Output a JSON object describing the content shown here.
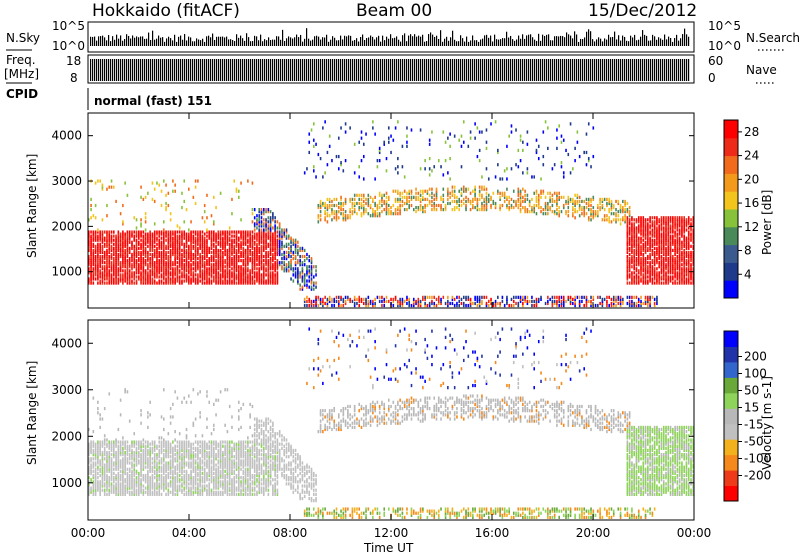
{
  "header": {
    "title": "Hokkaido (fitACF)",
    "beam": "Beam 00",
    "date": "15/Dec/2012"
  },
  "top_panels": {
    "nsky_label": "N.Sky",
    "nsky_ticks": [
      "10^5",
      "10^0"
    ],
    "nsearch_label": "N.Search",
    "nsearch_ticks": [
      "10^5",
      "10^0"
    ],
    "freq_label_1": "Freq.",
    "freq_label_2": "[MHz]",
    "freq_ticks": [
      "18",
      "8"
    ],
    "nave_label": "Nave",
    "nave_ticks": [
      "60",
      "0"
    ],
    "cpid_label": "CPID",
    "cpid_text": "normal (fast) 151"
  },
  "colors": {
    "power_scale": [
      "#0000ff",
      "#1e3a8a",
      "#3b5b8f",
      "#4a8a5a",
      "#88c23a",
      "#f2c41c",
      "#f39a1c",
      "#f26b1c",
      "#ee2a18",
      "#ff0000"
    ],
    "velocity_scale": [
      "#ff0000",
      "#ee3a18",
      "#f5891b",
      "#f2b11d",
      "#c0c0c0",
      "#b8b8b8",
      "#8ed35a",
      "#6aa83a",
      "#3366cc",
      "#2233aa",
      "#0000ff"
    ],
    "grey": "#c0c0c0"
  },
  "chart_data": [
    {
      "type": "heatmap",
      "name": "power",
      "ylabel": "Slant Range [km]",
      "xlabel": "",
      "xticks": [
        "00:00",
        "04:00",
        "08:00",
        "12:00",
        "16:00",
        "20:00",
        "00:00"
      ],
      "yticks": [
        "1000",
        "2000",
        "3000",
        "4000"
      ],
      "ylim": [
        200,
        4500
      ],
      "xlim_hours": [
        0,
        24
      ],
      "colorbar_label": "Power [dB]",
      "colorbar_ticks": [
        "4",
        "8",
        "12",
        "16",
        "20",
        "24",
        "28"
      ],
      "colorbar_range": [
        0,
        30
      ]
    },
    {
      "type": "heatmap",
      "name": "velocity",
      "ylabel": "Slant Range [km]",
      "xlabel": "Time UT",
      "xticks": [
        "00:00",
        "04:00",
        "08:00",
        "12:00",
        "16:00",
        "20:00",
        "00:00"
      ],
      "yticks": [
        "1000",
        "2000",
        "3000",
        "4000"
      ],
      "ylim": [
        200,
        4500
      ],
      "xlim_hours": [
        0,
        24
      ],
      "colorbar_label": "Velocity [m s-1]",
      "colorbar_ticks": [
        "200",
        "100",
        "50",
        "15",
        "-15",
        "-50",
        "-100",
        "-200"
      ],
      "colorbar_range": [
        -250,
        250
      ]
    }
  ]
}
